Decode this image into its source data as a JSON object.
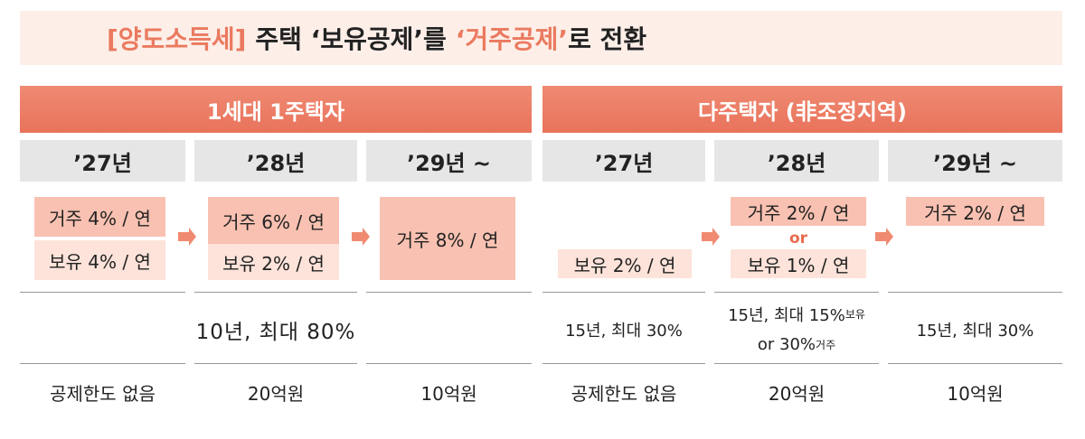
{
  "title": {
    "bracket": "[양도소득세]",
    "part1": "주택 ‘보유공제’를",
    "part2": "‘거주공제’",
    "part3": "로 전환"
  },
  "groups": [
    "1세대 1주택자",
    "다주택자 (非조정지역)"
  ],
  "years": [
    "’27년",
    "’28년",
    "’29년 ~",
    "’27년",
    "’28년",
    "’29년 ~"
  ],
  "rates": [
    [
      "거주 4% / 연",
      "보유 4% / 연"
    ],
    [
      "거주 6% / 연",
      "보유 2% / 연"
    ],
    [
      "거주 8% / 연"
    ],
    [
      "보유 2% / 연"
    ],
    [
      "거주 2% / 연",
      "or",
      "보유 1% / 연"
    ],
    [
      "거주 2% / 연"
    ]
  ],
  "periods": {
    "group1": "10년, 최대 80%",
    "col3": "15년, 최대 30%",
    "col4": {
      "line1": "15년, 최대 15%",
      "sup1": "보유",
      "line2": "or 30%",
      "sup2": "거주"
    },
    "col5": "15년, 최대 30%"
  },
  "limits": [
    "공제한도 없음",
    "20억원",
    "10억원",
    "공제한도 없음",
    "20억원",
    "10억원"
  ]
}
